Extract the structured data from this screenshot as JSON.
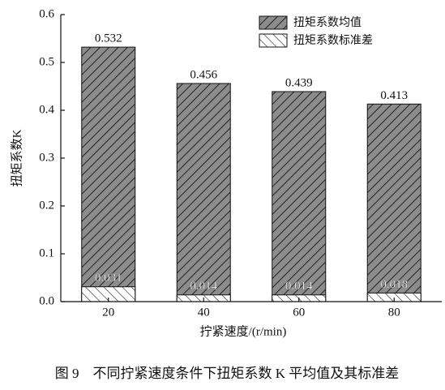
{
  "chart_data": {
    "type": "bar",
    "y_label": "扭矩系数K",
    "x_label": "拧紧速度/(r/min)",
    "caption": "图 9　不同拧紧速度条件下扭矩系数 K 平均值及其标准差",
    "categories": [
      "20",
      "40",
      "60",
      "80"
    ],
    "series": [
      {
        "name": "扭矩系数均值",
        "color": "#8c8c8c",
        "values": [
          0.532,
          0.456,
          0.439,
          0.413
        ]
      },
      {
        "name": "扭矩系数标准差",
        "color": "#ffffff",
        "values": [
          0.031,
          0.014,
          0.014,
          0.018
        ]
      }
    ],
    "ylim": [
      0,
      0.6
    ],
    "yticks": [
      {
        "value": 0,
        "label": "0.0"
      },
      0.1,
      0.2,
      0.3,
      0.4,
      0.5,
      0.6
    ],
    "legend": "upper right"
  }
}
